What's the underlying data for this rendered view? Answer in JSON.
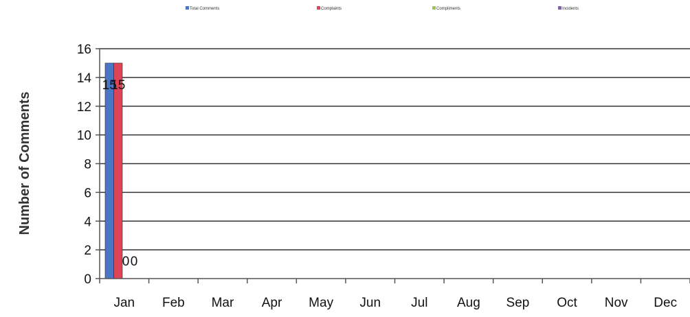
{
  "chart_data": {
    "type": "bar",
    "ylabel": "Number of Comments",
    "xlabel": "",
    "title": "",
    "categories": [
      "Jan",
      "Feb",
      "Mar",
      "Apr",
      "May",
      "Jun",
      "Jul",
      "Aug",
      "Sep",
      "Oct",
      "Nov",
      "Dec"
    ],
    "series": [
      {
        "name": "Total Comments",
        "color": "#4a76c4",
        "values": [
          15,
          null,
          null,
          null,
          null,
          null,
          null,
          null,
          null,
          null,
          null,
          null
        ]
      },
      {
        "name": "Complaints",
        "color": "#dd4455",
        "values": [
          15,
          null,
          null,
          null,
          null,
          null,
          null,
          null,
          null,
          null,
          null,
          null
        ]
      },
      {
        "name": "Compliments",
        "color": "#a4c25a",
        "values": [
          0,
          null,
          null,
          null,
          null,
          null,
          null,
          null,
          null,
          null,
          null,
          null
        ]
      },
      {
        "name": "Incidents",
        "color": "#8064a2",
        "values": [
          0,
          null,
          null,
          null,
          null,
          null,
          null,
          null,
          null,
          null,
          null,
          null
        ]
      }
    ],
    "ylim": [
      0,
      16
    ],
    "yticks": [
      0,
      2,
      4,
      6,
      8,
      10,
      12,
      14,
      16
    ],
    "grid": true,
    "legend_position": "top"
  }
}
